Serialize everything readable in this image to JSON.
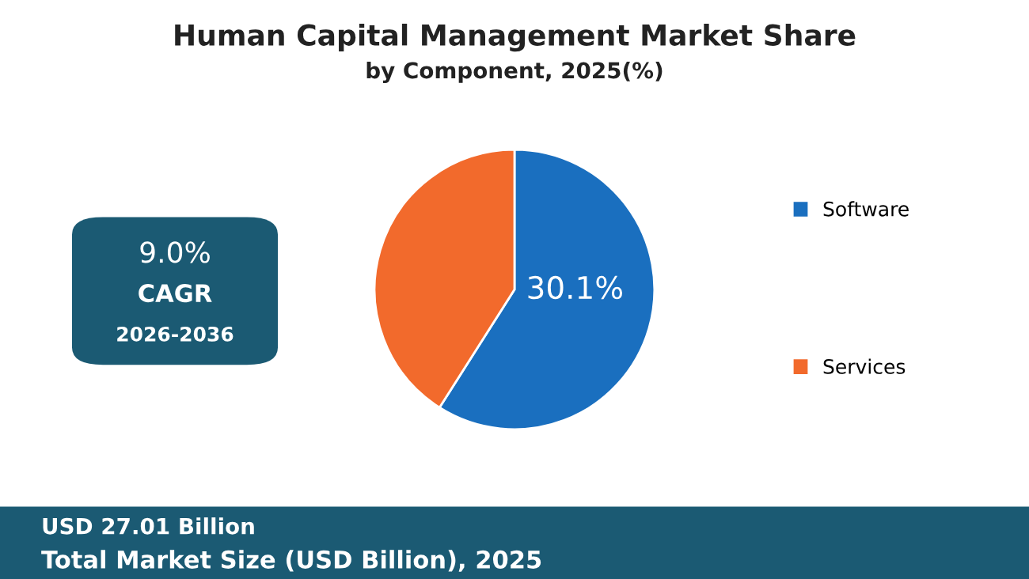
{
  "chart_data": {
    "type": "pie",
    "title": "Human Capital Management Market Share",
    "subtitle": "by Component, 2025(%)",
    "categories": [
      "Software",
      "Services"
    ],
    "values": [
      59,
      41
    ],
    "colors": [
      "#1a6fbf",
      "#f26a2c"
    ],
    "legend": "right",
    "annotations": [
      "30.1%",
      "9.0%",
      "CAGR",
      "2026-2036",
      "USD 27.01 Billion",
      "Total Market Size (USD Billion), 2025"
    ]
  }
}
